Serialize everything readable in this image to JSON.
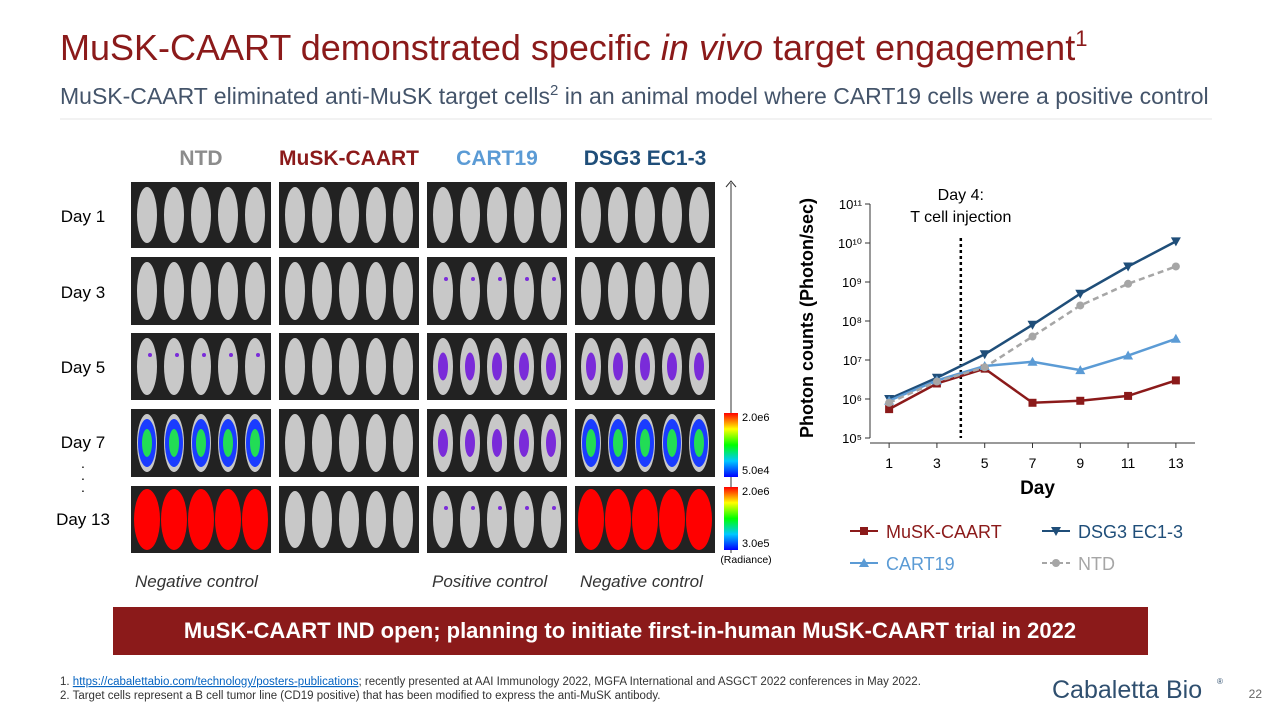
{
  "title": [
    "MuSK-CAART demonstrated specific ",
    "in vivo",
    " target engagement",
    "1"
  ],
  "subtitle": [
    "MuSK-CAART eliminated anti-MuSK target cells",
    "2",
    " in an animal model where CART19 cells were a positive control"
  ],
  "panel": {
    "groups": [
      "NTD",
      "MuSK-CAART",
      "CART19",
      "DSG3 EC1-3"
    ],
    "group_colors": [
      "#8c8c8c",
      "#8b1a1a",
      "#5b9bd5",
      "#1f4e79"
    ],
    "days": [
      "Day 1",
      "Day 3",
      "Day 5",
      "Day 7",
      "Day 13"
    ],
    "colorbars": [
      {
        "max": "2.0e6",
        "min": "5.0e4"
      },
      {
        "max": "2.0e6",
        "min": "3.0e5"
      }
    ],
    "radiance": "(Radiance)",
    "captions": [
      "Negative control",
      "Positive control",
      "Negative control"
    ]
  },
  "chart_data": {
    "type": "line",
    "y_label": "Photon counts (Photon/sec)",
    "x_label": "Day",
    "annotation": {
      "x": 4,
      "text": [
        "Day 4:",
        "T cell injection"
      ]
    },
    "x": [
      1,
      3,
      5,
      7,
      9,
      11,
      13
    ],
    "xlim": [
      0.2,
      13.8
    ],
    "xticks": [
      1,
      3,
      5,
      7,
      9,
      11,
      13
    ],
    "log_y": true,
    "ylim": [
      100000,
      100000000000
    ],
    "yticks": [
      {
        "value": 100000,
        "label": "10⁵"
      },
      {
        "value": 1000000,
        "label": "10⁶"
      },
      {
        "value": 10000000,
        "label": "10⁷"
      },
      {
        "value": 100000000,
        "label": "10⁸"
      },
      {
        "value": 1000000000,
        "label": "10⁹"
      },
      {
        "value": 10000000000,
        "label": "10¹⁰"
      },
      {
        "value": 100000000000,
        "label": "10¹¹"
      }
    ],
    "series": [
      {
        "name": "MuSK-CAART",
        "color": "#8b1a1a",
        "marker": "square",
        "dashed": false,
        "values": [
          550000,
          2500000,
          6000000,
          800000,
          900000,
          1200000,
          3000000
        ]
      },
      {
        "name": "DSG3 EC1-3",
        "color": "#1f4e79",
        "marker": "down",
        "dashed": false,
        "values": [
          1000000,
          3500000,
          14000000,
          80000000,
          500000000,
          2500000000,
          11000000000
        ]
      },
      {
        "name": "CART19",
        "color": "#5b9bd5",
        "marker": "up",
        "dashed": false,
        "values": [
          900000,
          3000000,
          7000000,
          9000000,
          5500000,
          13000000,
          35000000
        ]
      },
      {
        "name": "NTD",
        "color": "#a6a6a6",
        "marker": "circle",
        "dashed": true,
        "values": [
          800000,
          2800000,
          6500000,
          40000000,
          250000000,
          900000000,
          2500000000
        ]
      }
    ]
  },
  "banner": "MuSK-CAART IND open; planning to initiate first-in-human MuSK-CAART trial in 2022",
  "footnotes": [
    [
      "1. ",
      "https://cabalettabio.com/technology/posters-publications",
      "; recently presented at AAI Immunology 2022, MGFA International and ASGCT 2022 conferences in May 2022."
    ],
    [
      "2. Target cells represent a B cell tumor line (CD19 positive) that has been modified to express the anti-MuSK antibody."
    ]
  ],
  "logo": "Cabaletta Bio",
  "page": "22"
}
